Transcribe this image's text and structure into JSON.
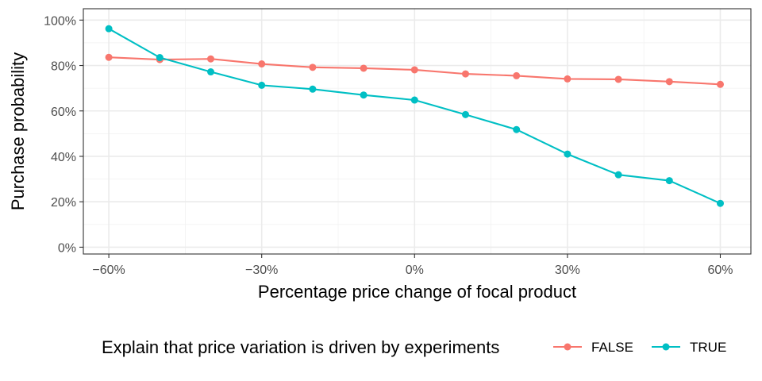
{
  "chart_data": {
    "type": "line",
    "xlabel": "Percentage price change of focal product",
    "ylabel": "Purchase probability",
    "x": [
      -60,
      -50,
      -40,
      -30,
      -20,
      -10,
      0,
      10,
      20,
      30,
      40,
      50,
      60
    ],
    "xlim": [
      -65,
      66
    ],
    "ylim": [
      -3,
      105
    ],
    "x_ticks": [
      -60,
      -30,
      0,
      30,
      60
    ],
    "x_tick_labels": [
      "−60%",
      "−30%",
      "0%",
      "30%",
      "60%"
    ],
    "y_ticks": [
      0,
      20,
      40,
      60,
      80,
      100
    ],
    "y_tick_labels": [
      "0%",
      "20%",
      "40%",
      "60%",
      "80%",
      "100%"
    ],
    "grid": true,
    "legend": {
      "title": "Explain that price variation is driven by experiments",
      "position": "bottom"
    },
    "series": [
      {
        "name": "FALSE",
        "color": "#F8766D",
        "values": [
          83.6,
          82.6,
          82.9,
          80.7,
          79.2,
          78.8,
          78.1,
          76.3,
          75.5,
          74.1,
          73.9,
          72.9,
          71.7
        ]
      },
      {
        "name": "TRUE",
        "color": "#00BFC4",
        "values": [
          96.2,
          83.5,
          77.2,
          71.3,
          69.6,
          67.0,
          64.8,
          58.4,
          51.8,
          41.0,
          31.9,
          29.3,
          19.3
        ]
      }
    ]
  }
}
